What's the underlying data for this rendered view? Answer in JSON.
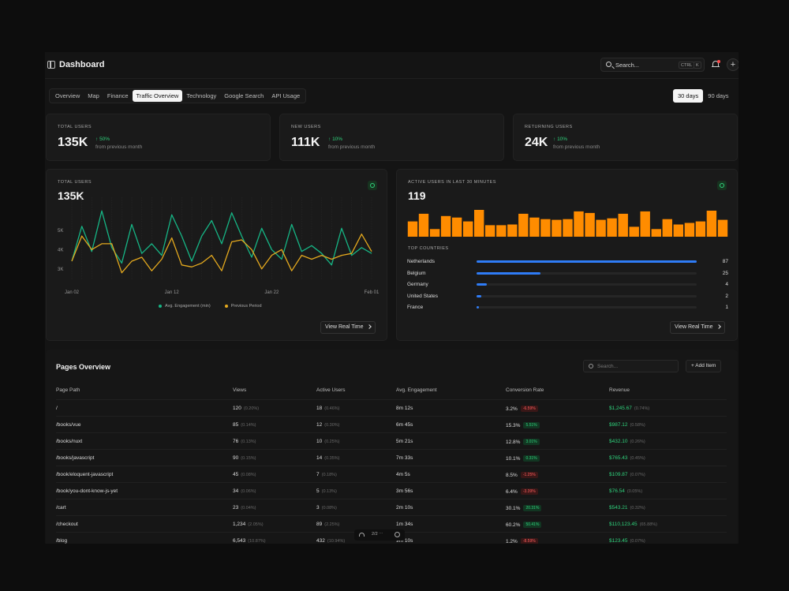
{
  "app": {
    "title": "Dashboard"
  },
  "search": {
    "placeholder": "Search...",
    "shortcut_1": "CTRL",
    "shortcut_2": "K"
  },
  "tabs": [
    {
      "label": "Overview"
    },
    {
      "label": "Map"
    },
    {
      "label": "Finance"
    },
    {
      "label": "Traffic Overview",
      "active": true
    },
    {
      "label": "Technology"
    },
    {
      "label": "Google Search"
    },
    {
      "label": "API Usage"
    }
  ],
  "ranges": [
    {
      "label": "30 days",
      "active": true
    },
    {
      "label": "90 days"
    }
  ],
  "stats": [
    {
      "label": "TOTAL USERS",
      "value": "135K",
      "change": "50%",
      "sub": "from previous month"
    },
    {
      "label": "NEW USERS",
      "value": "111K",
      "change": "10%",
      "sub": "from previous month"
    },
    {
      "label": "RETURNING USERS",
      "value": "24K",
      "change": "10%",
      "sub": "from previous month"
    }
  ],
  "line_panel": {
    "label": "TOTAL USERS",
    "value": "135K",
    "button": "View Real Time",
    "legend_a": "Avg. Engagement (min)",
    "legend_b": "Previous Period"
  },
  "bar_panel": {
    "label": "ACTIVE USERS IN LAST 30 MINUTES",
    "value": "119",
    "countries_label": "TOP COUNTRIES",
    "button": "View Real Time",
    "countries": [
      {
        "name": "Netherlands",
        "count": "87",
        "share": 1.0
      },
      {
        "name": "Belgium",
        "count": "25",
        "share": 0.29
      },
      {
        "name": "Germany",
        "count": "4",
        "share": 0.046
      },
      {
        "name": "United States",
        "count": "2",
        "share": 0.023
      },
      {
        "name": "France",
        "count": "1",
        "share": 0.011
      }
    ]
  },
  "chart_data": [
    {
      "type": "line",
      "categories": [
        "Jan 02",
        "",
        "",
        "",
        "",
        "",
        "",
        "",
        "",
        "",
        "Jan 12",
        "",
        "",
        "",
        "",
        "",
        "",
        "",
        "",
        "",
        "Jan 22",
        "",
        "",
        "",
        "",
        "",
        "",
        "",
        "",
        "",
        "Feb 01"
      ],
      "x_ticks": [
        "Jan 02",
        "Jan 12",
        "Jan 22",
        "Feb 01"
      ],
      "y_ticks": [
        "5K",
        "4K",
        "3K"
      ],
      "ylim": [
        2500,
        6500
      ],
      "series": [
        {
          "name": "Avg. Engagement (min)",
          "color": "#16b585",
          "values": [
            3400,
            5200,
            3900,
            6000,
            4100,
            3300,
            5300,
            3800,
            4300,
            3700,
            5800,
            4700,
            3400,
            4700,
            5500,
            4300,
            5900,
            4700,
            3600,
            5100,
            4000,
            3500,
            5300,
            3900,
            4200,
            3800,
            3200,
            5100,
            3700,
            4100,
            3800
          ]
        },
        {
          "name": "Previous Period",
          "color": "#e4a91e",
          "values": [
            3400,
            4700,
            4000,
            4300,
            4300,
            2800,
            3400,
            3600,
            2900,
            3500,
            4600,
            3200,
            3100,
            3300,
            3700,
            2900,
            4400,
            4500,
            4000,
            3000,
            3700,
            4000,
            2900,
            3700,
            3500,
            3700,
            3500,
            3700,
            3800,
            4800,
            3900
          ]
        }
      ]
    },
    {
      "type": "bar",
      "color": "#ff8c00",
      "values": [
        2,
        3,
        1,
        2.7,
        2.5,
        2,
        3.5,
        1.5,
        1.5,
        1.6,
        3,
        2.5,
        2.3,
        2.2,
        2.3,
        3.3,
        3.1,
        2.2,
        2.4,
        3,
        1.3,
        3.3,
        1,
        2.3,
        1.6,
        1.8,
        2,
        3.4,
        2.2
      ]
    }
  ],
  "pages": {
    "title": "Pages Overview",
    "search_placeholder": "Search...",
    "add_label": "Add Item",
    "columns": [
      "Page Path",
      "Views",
      "Active Users",
      "Avg. Engagement",
      "Conversion Rate",
      "Revenue"
    ],
    "rows": [
      {
        "path": "/",
        "views": "120",
        "views_pct": "(0.20%)",
        "users": "18",
        "users_pct": "(0.46%)",
        "eng": "8m 12s",
        "conv": "3.2%",
        "delta": "-6.59%",
        "dir": "neg",
        "rev": "$1,245.67",
        "rev_pct": "(0.74%)"
      },
      {
        "path": "/books/vue",
        "views": "85",
        "views_pct": "(0.14%)",
        "users": "12",
        "users_pct": "(0.30%)",
        "eng": "6m 45s",
        "conv": "15.3%",
        "delta": "5.51%",
        "dir": "pos",
        "rev": "$987.12",
        "rev_pct": "(0.58%)"
      },
      {
        "path": "/books/nuxt",
        "views": "76",
        "views_pct": "(0.13%)",
        "users": "10",
        "users_pct": "(0.25%)",
        "eng": "5m 21s",
        "conv": "12.8%",
        "delta": "3.01%",
        "dir": "pos",
        "rev": "$432.10",
        "rev_pct": "(0.26%)"
      },
      {
        "path": "/books/javascript",
        "views": "90",
        "views_pct": "(0.15%)",
        "users": "14",
        "users_pct": "(0.35%)",
        "eng": "7m 33s",
        "conv": "10.1%",
        "delta": "0.31%",
        "dir": "pos",
        "rev": "$765.43",
        "rev_pct": "(0.45%)"
      },
      {
        "path": "/book/eloquent-javascript",
        "views": "45",
        "views_pct": "(0.08%)",
        "users": "7",
        "users_pct": "(0.18%)",
        "eng": "4m 5s",
        "conv": "8.5%",
        "delta": "-1.25%",
        "dir": "neg",
        "rev": "$109.87",
        "rev_pct": "(0.07%)"
      },
      {
        "path": "/book/you-dont-know-js-yet",
        "views": "34",
        "views_pct": "(0.06%)",
        "users": "5",
        "users_pct": "(0.13%)",
        "eng": "3m 56s",
        "conv": "6.4%",
        "delta": "-3.39%",
        "dir": "neg",
        "rev": "$76.54",
        "rev_pct": "(0.05%)"
      },
      {
        "path": "/cart",
        "views": "23",
        "views_pct": "(0.04%)",
        "users": "3",
        "users_pct": "(0.08%)",
        "eng": "2m 10s",
        "conv": "30.1%",
        "delta": "20.31%",
        "dir": "pos",
        "rev": "$543.21",
        "rev_pct": "(0.32%)"
      },
      {
        "path": "/checkout",
        "views": "1,234",
        "views_pct": "(2.05%)",
        "users": "89",
        "users_pct": "(2.25%)",
        "eng": "1m 34s",
        "conv": "60.2%",
        "delta": "50.41%",
        "dir": "pos",
        "rev": "$110,123.45",
        "rev_pct": "(65.88%)"
      },
      {
        "path": "/blog",
        "views": "6,543",
        "views_pct": "(10.87%)",
        "users": "432",
        "users_pct": "(10.94%)",
        "eng": "9m 10s",
        "conv": "1.2%",
        "delta": "-8.59%",
        "dir": "neg",
        "rev": "$123.45",
        "rev_pct": "(0.07%)"
      }
    ]
  },
  "pager": {
    "label": "2/2 ⋯"
  }
}
